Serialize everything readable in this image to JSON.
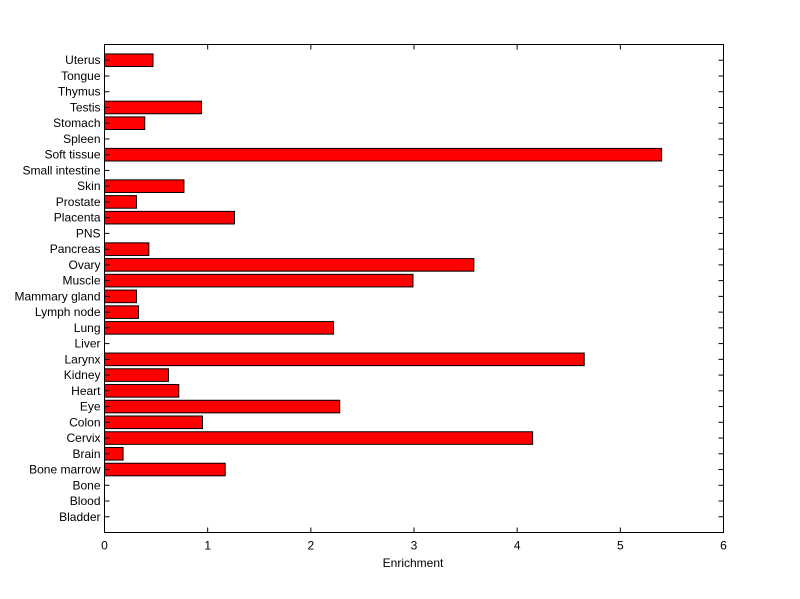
{
  "chart_data": {
    "type": "bar",
    "orientation": "horizontal",
    "xlabel": "Enrichment",
    "ylabel": "",
    "title": "",
    "xlim": [
      0,
      6
    ],
    "xticks": [
      "0",
      "1",
      "2",
      "3",
      "4",
      "5",
      "6"
    ],
    "grid": false,
    "bar_color": "#ff0000",
    "categories": [
      "Bladder",
      "Blood",
      "Bone",
      "Bone marrow",
      "Brain",
      "Cervix",
      "Colon",
      "Eye",
      "Heart",
      "Kidney",
      "Larynx",
      "Liver",
      "Lung",
      "Lymph node",
      "Mammary gland",
      "Muscle",
      "Ovary",
      "Pancreas",
      "PNS",
      "Placenta",
      "Prostate",
      "Skin",
      "Small intestine",
      "Soft tissue",
      "Spleen",
      "Stomach",
      "Testis",
      "Thymus",
      "Tongue",
      "Uterus"
    ],
    "values": [
      0,
      0,
      0,
      1.17,
      0.18,
      4.15,
      0.95,
      2.28,
      0.72,
      0.62,
      4.65,
      0,
      2.22,
      0.33,
      0.31,
      2.99,
      3.58,
      0.43,
      0,
      1.26,
      0.31,
      0.77,
      0,
      5.4,
      0,
      0.39,
      0.94,
      0,
      0,
      0.47
    ]
  }
}
